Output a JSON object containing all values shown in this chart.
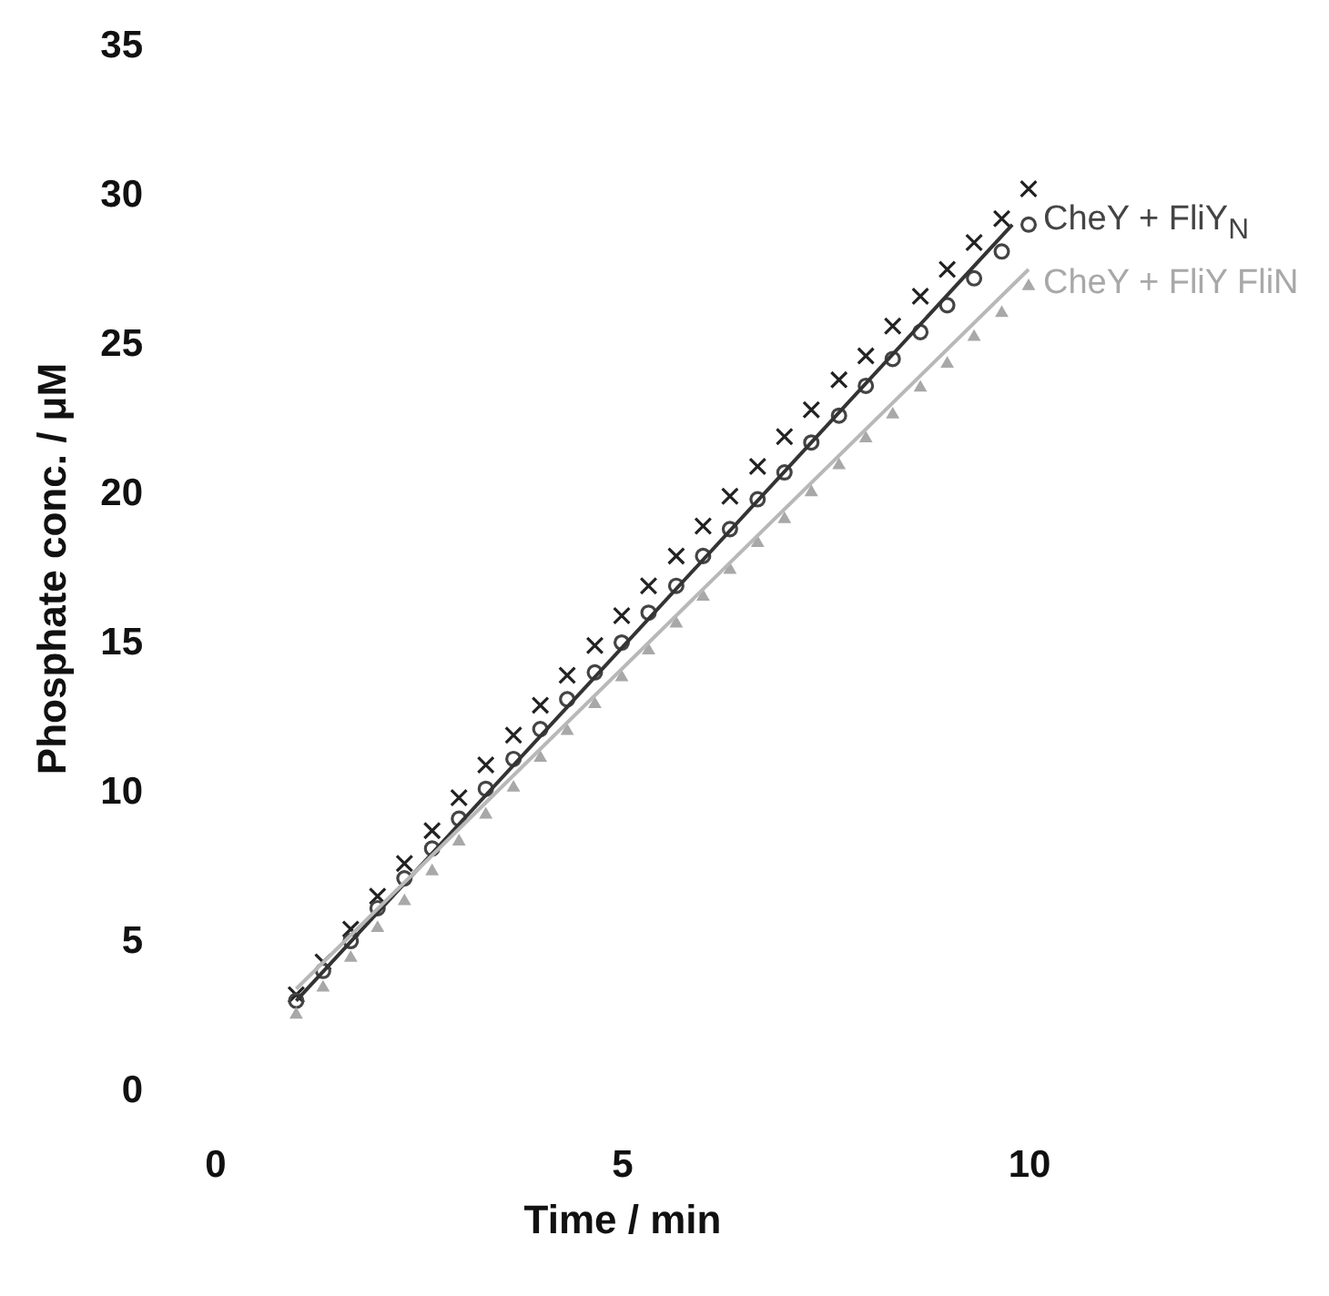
{
  "chart_data": {
    "type": "scatter",
    "xlabel": "Time / min",
    "ylabel": "Phosphate conc. / μM",
    "xlim": [
      0,
      10
    ],
    "ylim": [
      0,
      35
    ],
    "xticks": [
      0,
      5,
      10
    ],
    "yticks": [
      0,
      5,
      10,
      15,
      20,
      25,
      30,
      35
    ],
    "grid": false,
    "legend": "right",
    "x": [
      1,
      1.33,
      1.67,
      2,
      2.33,
      2.67,
      3,
      3.33,
      3.67,
      4,
      4.33,
      4.67,
      5,
      5.33,
      5.67,
      6,
      6.33,
      6.67,
      7,
      7.33,
      7.67,
      8,
      8.33,
      8.67,
      9,
      9.33,
      9.67,
      10
    ],
    "series": [
      {
        "color": "#222222",
        "marker": "cross",
        "values": [
          3.2,
          4.3,
          5.4,
          6.5,
          7.6,
          8.7,
          9.8,
          10.9,
          11.9,
          12.9,
          13.9,
          14.9,
          15.9,
          16.9,
          17.9,
          18.9,
          19.9,
          20.9,
          21.9,
          22.8,
          23.8,
          24.6,
          25.6,
          26.6,
          27.5,
          28.4,
          29.2,
          30.2
        ]
      },
      {
        "name": "CheY + FliY$_{N}$",
        "color": "#444444",
        "marker": "circle",
        "values": [
          3.0,
          4.0,
          5.0,
          6.1,
          7.1,
          8.1,
          9.1,
          10.1,
          11.1,
          12.1,
          13.1,
          14.0,
          15.0,
          16.0,
          16.9,
          17.9,
          18.8,
          19.8,
          20.7,
          21.7,
          22.6,
          23.6,
          24.5,
          25.4,
          26.3,
          27.2,
          28.1,
          29.0
        ]
      },
      {
        "name": "CheY + FliY FliN",
        "color": "#a8a8a8",
        "marker": "triangle",
        "values": [
          2.6,
          3.5,
          4.5,
          5.5,
          6.4,
          7.4,
          8.4,
          9.3,
          10.2,
          11.2,
          12.1,
          13.0,
          13.9,
          14.8,
          15.7,
          16.6,
          17.5,
          18.4,
          19.2,
          20.1,
          21.0,
          21.9,
          22.7,
          23.6,
          24.4,
          25.3,
          26.1,
          27.0
        ]
      },
      {
        "type": "line",
        "color": "#333333",
        "x": [
          1,
          9.8
        ],
        "values": [
          3.0,
          29.0
        ]
      },
      {
        "type": "line",
        "color": "#b8b8b8",
        "x": [
          1,
          10
        ],
        "values": [
          3.4,
          27.5
        ]
      }
    ]
  }
}
